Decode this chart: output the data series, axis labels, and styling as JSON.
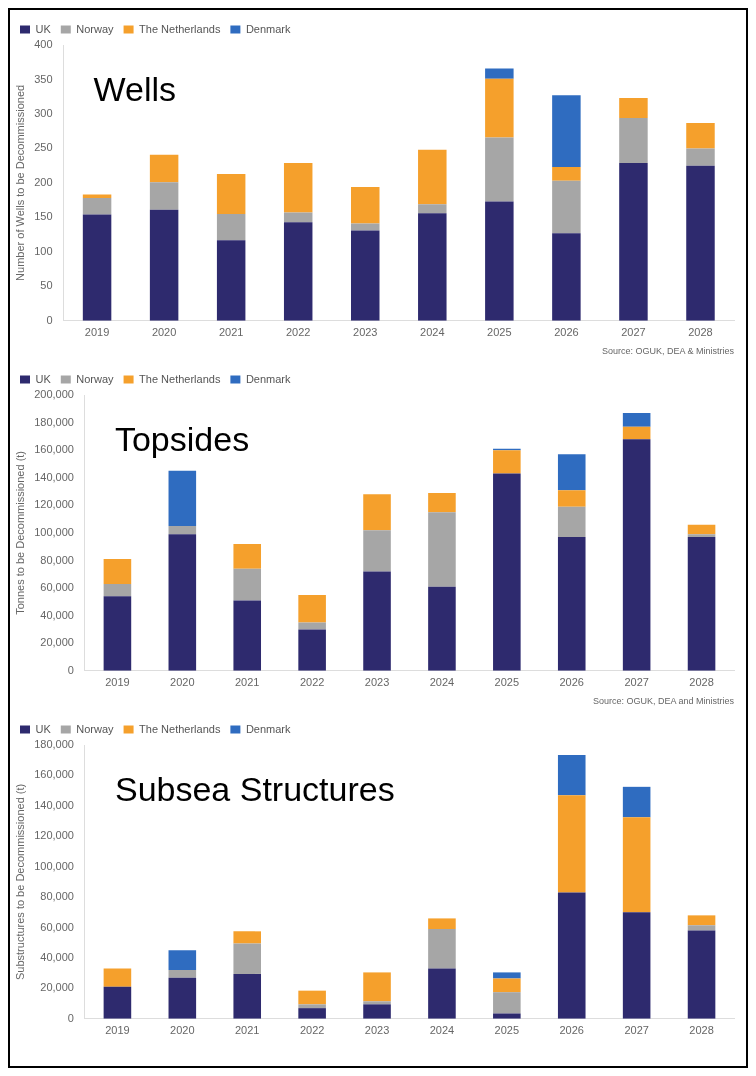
{
  "chart_data": [
    {
      "type": "bar",
      "title": "Wells",
      "ylabel": "Number of Wells to be Decommissioned",
      "categories": [
        "2019",
        "2020",
        "2021",
        "2022",
        "2023",
        "2024",
        "2025",
        "2026",
        "2027",
        "2028"
      ],
      "stacked": true,
      "grid": false,
      "legend": "top left",
      "ylim": [
        0,
        400
      ],
      "yticks": [
        0,
        50,
        100,
        150,
        200,
        250,
        300,
        350,
        400
      ],
      "annotations": [
        "Source: OGUK, DEA & Ministries"
      ],
      "series": [
        {
          "name": "UK",
          "color": "#2e2a6e",
          "values": [
            154,
            161,
            117,
            143,
            131,
            156,
            173,
            127,
            229,
            225
          ]
        },
        {
          "name": "Norway",
          "color": "#a6a6a6",
          "values": [
            24,
            40,
            38,
            14,
            10,
            13,
            93,
            76,
            65,
            25
          ]
        },
        {
          "name": "The Netherlands",
          "color": "#f5a02c",
          "values": [
            5,
            40,
            58,
            72,
            53,
            79,
            85,
            20,
            29,
            37
          ]
        },
        {
          "name": "Denmark",
          "color": "#2f6cc0",
          "values": [
            0,
            0,
            0,
            0,
            0,
            0,
            15,
            104,
            0,
            0
          ]
        }
      ]
    },
    {
      "type": "bar",
      "title": "Topsides",
      "ylabel": "Tonnes to be Decommissioned (t)",
      "categories": [
        "2019",
        "2020",
        "2021",
        "2022",
        "2023",
        "2024",
        "2025",
        "2026",
        "2027",
        "2028"
      ],
      "stacked": true,
      "grid": false,
      "legend": "top left",
      "ylim": [
        0,
        200000
      ],
      "yticks": [
        {
          "value": 0,
          "label": "0"
        },
        {
          "value": 20000,
          "label": "20,000"
        },
        {
          "value": 40000,
          "label": "40,000"
        },
        {
          "value": 60000,
          "label": "60,000"
        },
        {
          "value": 80000,
          "label": "80,000"
        },
        {
          "value": 100000,
          "label": "100,000"
        },
        {
          "value": 120000,
          "label": "120,000"
        },
        {
          "value": 140000,
          "label": "140,000"
        },
        {
          "value": 160000,
          "label": "160,000"
        },
        {
          "value": 180000,
          "label": "180,000"
        },
        {
          "value": 200000,
          "label": "200,000"
        }
      ],
      "annotations": [
        "Source: OGUK, DEA and Ministries"
      ],
      "series": [
        {
          "name": "UK",
          "color": "#2e2a6e",
          "values": [
            54000,
            99000,
            51000,
            30000,
            72000,
            61000,
            143000,
            97000,
            168000,
            97000
          ]
        },
        {
          "name": "Norway",
          "color": "#a6a6a6",
          "values": [
            9000,
            6000,
            23000,
            5000,
            30000,
            54000,
            0,
            22000,
            0,
            2000
          ]
        },
        {
          "name": "The Netherlands",
          "color": "#f5a02c",
          "values": [
            18000,
            0,
            18000,
            20000,
            26000,
            14000,
            17000,
            12000,
            9000,
            7000
          ]
        },
        {
          "name": "Denmark",
          "color": "#2f6cc0",
          "values": [
            0,
            40000,
            0,
            0,
            0,
            0,
            1000,
            26000,
            10000,
            0
          ]
        }
      ]
    },
    {
      "type": "bar",
      "title": "Subsea Structures",
      "ylabel": "Substructures to be Decommissioned (t)",
      "categories": [
        "2019",
        "2020",
        "2021",
        "2022",
        "2023",
        "2024",
        "2025",
        "2026",
        "2027",
        "2028"
      ],
      "stacked": true,
      "grid": false,
      "legend": "top left",
      "ylim": [
        0,
        180000
      ],
      "yticks": [
        {
          "value": 0,
          "label": "0"
        },
        {
          "value": 20000,
          "label": "20,000"
        },
        {
          "value": 40000,
          "label": "40,000"
        },
        {
          "value": 60000,
          "label": "60,000"
        },
        {
          "value": 80000,
          "label": "80,000"
        },
        {
          "value": 100000,
          "label": "100,000"
        },
        {
          "value": 120000,
          "label": "120,000"
        },
        {
          "value": 140000,
          "label": "140,000"
        },
        {
          "value": 160000,
          "label": "160,000"
        },
        {
          "value": 180000,
          "label": "180,000"
        }
      ],
      "series": [
        {
          "name": "UK",
          "color": "#2e2a6e",
          "values": [
            21000,
            27000,
            29500,
            7000,
            9500,
            33000,
            3500,
            83000,
            70000,
            58000
          ]
        },
        {
          "name": "Norway",
          "color": "#a6a6a6",
          "values": [
            0,
            5000,
            20000,
            2500,
            2000,
            26000,
            14000,
            0,
            0,
            3500
          ]
        },
        {
          "name": "The Netherlands",
          "color": "#f5a02c",
          "values": [
            12000,
            0,
            8000,
            9000,
            19000,
            7000,
            9000,
            64000,
            62500,
            6500
          ]
        },
        {
          "name": "Denmark",
          "color": "#2f6cc0",
          "values": [
            0,
            13000,
            0,
            0,
            0,
            0,
            4000,
            26500,
            20000,
            0
          ]
        }
      ]
    }
  ]
}
